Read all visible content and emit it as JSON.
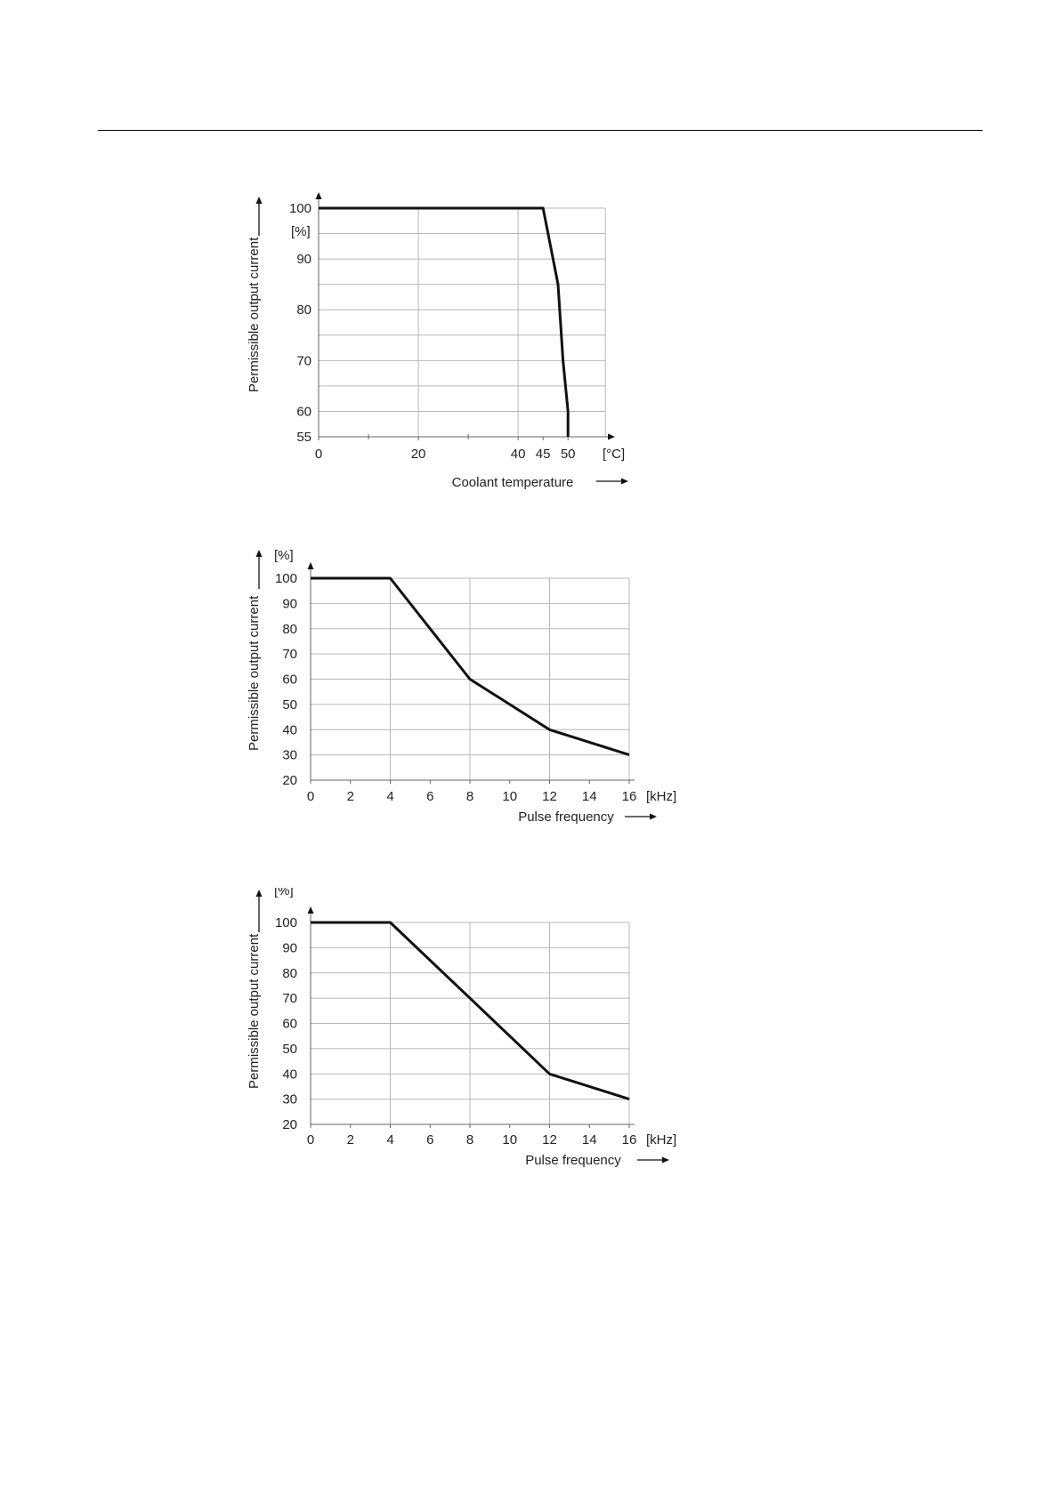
{
  "chart_data": [
    {
      "type": "line",
      "xlabel": "Coolant temperature",
      "ylabel": "Permissible output current",
      "x_unit": "[°C]",
      "y_unit": "[%]",
      "x_ticks": [
        0,
        20,
        40,
        45,
        50
      ],
      "x_minor_ticks": [
        10,
        30
      ],
      "y_ticks": [
        55,
        60,
        70,
        80,
        90,
        100
      ],
      "xlim": [
        0,
        58
      ],
      "ylim": [
        55,
        100
      ],
      "series": [
        {
          "x": [
            0,
            45,
            48,
            49,
            50,
            50
          ],
          "y": [
            100,
            100,
            85,
            70,
            60,
            55
          ]
        }
      ],
      "grid": true
    },
    {
      "type": "line",
      "xlabel": "Pulse frequency",
      "ylabel": "Permissible output current",
      "x_unit": "[kHz]",
      "y_unit": "[%]",
      "x_ticks": [
        0,
        2,
        4,
        6,
        8,
        10,
        12,
        14,
        16
      ],
      "y_ticks": [
        20,
        30,
        40,
        50,
        60,
        70,
        80,
        90,
        100
      ],
      "xlim": [
        0,
        16
      ],
      "ylim": [
        20,
        100
      ],
      "series": [
        {
          "x": [
            0,
            4,
            6,
            8,
            10,
            12,
            14,
            16
          ],
          "y": [
            100,
            100,
            80,
            60,
            50,
            40,
            35,
            30
          ]
        }
      ],
      "grid": true
    },
    {
      "type": "line",
      "xlabel": "Pulse frequency",
      "ylabel": "Permissible output current",
      "x_unit": "[kHz]",
      "y_unit": "[%]",
      "x_ticks": [
        0,
        2,
        4,
        6,
        8,
        10,
        12,
        14,
        16
      ],
      "y_ticks": [
        20,
        30,
        40,
        50,
        60,
        70,
        80,
        90,
        100
      ],
      "xlim": [
        0,
        16
      ],
      "ylim": [
        20,
        100
      ],
      "series": [
        {
          "x": [
            0,
            4,
            8,
            12,
            16
          ],
          "y": [
            100,
            100,
            70,
            40,
            30
          ]
        }
      ],
      "grid": true
    }
  ]
}
